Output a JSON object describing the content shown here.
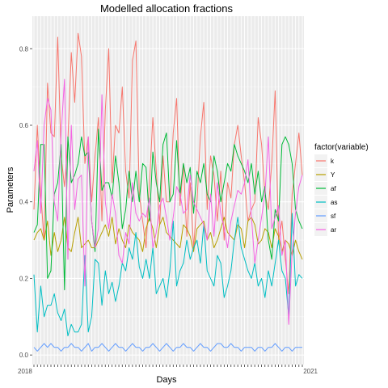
{
  "chart_data": {
    "type": "line",
    "title": "Modelled allocation fractions",
    "xlabel": "Days",
    "ylabel": "Parameters",
    "ylim": [
      -0.025,
      0.885
    ],
    "yticks": [
      0.0,
      0.2,
      0.4,
      0.6,
      0.8
    ],
    "ytick_labels": [
      "0.0",
      "0.2",
      "0.4",
      "0.6",
      "0.8"
    ],
    "x_first_tick": "2018",
    "x_last_tick": "2021",
    "grid": true,
    "legend": {
      "title": "factor(variable)",
      "position": "right"
    },
    "n_days": 80,
    "series": [
      {
        "name": "k",
        "color": "#F8766D",
        "values": [
          0.38,
          0.6,
          0.42,
          0.3,
          0.71,
          0.58,
          0.57,
          0.83,
          0.52,
          0.44,
          0.56,
          0.79,
          0.66,
          0.84,
          0.78,
          0.5,
          0.57,
          0.4,
          0.52,
          0.62,
          0.35,
          0.64,
          0.8,
          0.45,
          0.6,
          0.58,
          0.7,
          0.48,
          0.41,
          0.77,
          0.82,
          0.42,
          0.35,
          0.28,
          0.45,
          0.62,
          0.48,
          0.34,
          0.52,
          0.4,
          0.4,
          0.58,
          0.67,
          0.39,
          0.5,
          0.31,
          0.45,
          0.28,
          0.4,
          0.57,
          0.66,
          0.38,
          0.52,
          0.47,
          0.35,
          0.48,
          0.3,
          0.45,
          0.41,
          0.55,
          0.6,
          0.52,
          0.45,
          0.35,
          0.38,
          0.4,
          0.62,
          0.55,
          0.42,
          0.38,
          0.5,
          0.69,
          0.3,
          0.35,
          0.25,
          0.16,
          0.42,
          0.5,
          0.58,
          0.47
        ]
      },
      {
        "name": "Y",
        "color": "#B79F00",
        "values": [
          0.3,
          0.32,
          0.33,
          0.3,
          0.35,
          0.26,
          0.32,
          0.27,
          0.3,
          0.36,
          0.28,
          0.27,
          0.32,
          0.36,
          0.28,
          0.29,
          0.3,
          0.28,
          0.28,
          0.3,
          0.32,
          0.34,
          0.31,
          0.36,
          0.29,
          0.33,
          0.3,
          0.28,
          0.34,
          0.32,
          0.31,
          0.3,
          0.27,
          0.33,
          0.36,
          0.33,
          0.28,
          0.34,
          0.36,
          0.32,
          0.31,
          0.3,
          0.29,
          0.28,
          0.34,
          0.33,
          0.31,
          0.27,
          0.33,
          0.34,
          0.35,
          0.3,
          0.32,
          0.28,
          0.3,
          0.33,
          0.36,
          0.32,
          0.31,
          0.3,
          0.34,
          0.33,
          0.28,
          0.35,
          0.36,
          0.34,
          0.29,
          0.3,
          0.33,
          0.32,
          0.28,
          0.33,
          0.31,
          0.27,
          0.3,
          0.29,
          0.26,
          0.3,
          0.27,
          0.25
        ]
      },
      {
        "name": "af",
        "color": "#00BA38",
        "values": [
          0.32,
          0.34,
          0.55,
          0.55,
          0.2,
          0.22,
          0.42,
          0.45,
          0.55,
          0.17,
          0.57,
          0.45,
          0.47,
          0.5,
          0.57,
          0.52,
          0.53,
          0.35,
          0.27,
          0.59,
          0.43,
          0.45,
          0.45,
          0.41,
          0.52,
          0.45,
          0.33,
          0.38,
          0.48,
          0.4,
          0.48,
          0.4,
          0.5,
          0.49,
          0.35,
          0.53,
          0.45,
          0.4,
          0.55,
          0.58,
          0.4,
          0.42,
          0.56,
          0.42,
          0.5,
          0.45,
          0.49,
          0.37,
          0.48,
          0.45,
          0.5,
          0.42,
          0.4,
          0.52,
          0.48,
          0.4,
          0.45,
          0.5,
          0.48,
          0.55,
          0.52,
          0.5,
          0.48,
          0.45,
          0.5,
          0.42,
          0.48,
          0.4,
          0.44,
          0.3,
          0.25,
          0.38,
          0.35,
          0.55,
          0.57,
          0.55,
          0.5,
          0.38,
          0.35,
          0.33
        ]
      },
      {
        "name": "as",
        "color": "#00BFC4",
        "values": [
          0.21,
          0.06,
          0.18,
          0.1,
          0.13,
          0.13,
          0.16,
          0.11,
          0.09,
          0.12,
          0.05,
          0.08,
          0.06,
          0.06,
          0.08,
          0.26,
          0.06,
          0.1,
          0.25,
          0.24,
          0.13,
          0.22,
          0.16,
          0.19,
          0.14,
          0.18,
          0.24,
          0.22,
          0.28,
          0.25,
          0.32,
          0.23,
          0.2,
          0.25,
          0.2,
          0.28,
          0.16,
          0.18,
          0.2,
          0.15,
          0.22,
          0.35,
          0.18,
          0.22,
          0.24,
          0.3,
          0.25,
          0.28,
          0.3,
          0.24,
          0.34,
          0.22,
          0.2,
          0.18,
          0.26,
          0.24,
          0.15,
          0.18,
          0.22,
          0.3,
          0.36,
          0.28,
          0.25,
          0.22,
          0.2,
          0.24,
          0.18,
          0.2,
          0.15,
          0.22,
          0.18,
          0.24,
          0.3,
          0.22,
          0.2,
          0.1,
          0.37,
          0.18,
          0.21,
          0.2
        ]
      },
      {
        "name": "sf",
        "color": "#619CFF",
        "values": [
          0.02,
          0.01,
          0.02,
          0.03,
          0.02,
          0.03,
          0.02,
          0.02,
          0.01,
          0.02,
          0.02,
          0.03,
          0.02,
          0.02,
          0.01,
          0.02,
          0.03,
          0.01,
          0.02,
          0.02,
          0.03,
          0.02,
          0.01,
          0.02,
          0.03,
          0.02,
          0.02,
          0.01,
          0.02,
          0.03,
          0.02,
          0.02,
          0.01,
          0.02,
          0.02,
          0.03,
          0.02,
          0.01,
          0.02,
          0.03,
          0.02,
          0.01,
          0.02,
          0.02,
          0.03,
          0.02,
          0.02,
          0.01,
          0.02,
          0.03,
          0.02,
          0.02,
          0.01,
          0.02,
          0.03,
          0.03,
          0.02,
          0.02,
          0.03,
          0.02,
          0.02,
          0.01,
          0.02,
          0.02,
          0.02,
          0.01,
          0.02,
          0.02,
          0.01,
          0.02,
          0.02,
          0.03,
          0.02,
          0.01,
          0.02,
          0.02,
          0.01,
          0.02,
          0.02,
          0.02
        ]
      },
      {
        "name": "ar",
        "color": "#F564E3",
        "values": [
          0.48,
          0.56,
          0.37,
          0.6,
          0.67,
          0.64,
          0.4,
          0.35,
          0.58,
          0.72,
          0.25,
          0.6,
          0.38,
          0.46,
          0.47,
          0.18,
          0.57,
          0.35,
          0.28,
          0.33,
          0.68,
          0.4,
          0.33,
          0.42,
          0.37,
          0.26,
          0.24,
          0.32,
          0.29,
          0.45,
          0.37,
          0.35,
          0.37,
          0.36,
          0.41,
          0.28,
          0.32,
          0.39,
          0.41,
          0.36,
          0.3,
          0.36,
          0.44,
          0.42,
          0.37,
          0.38,
          0.47,
          0.4,
          0.38,
          0.36,
          0.34,
          0.3,
          0.42,
          0.31,
          0.45,
          0.37,
          0.33,
          0.28,
          0.35,
          0.39,
          0.43,
          0.42,
          0.45,
          0.51,
          0.36,
          0.24,
          0.3,
          0.36,
          0.42,
          0.57,
          0.33,
          0.36,
          0.39,
          0.26,
          0.3,
          0.08,
          0.27,
          0.37,
          0.44,
          0.47
        ]
      }
    ]
  }
}
